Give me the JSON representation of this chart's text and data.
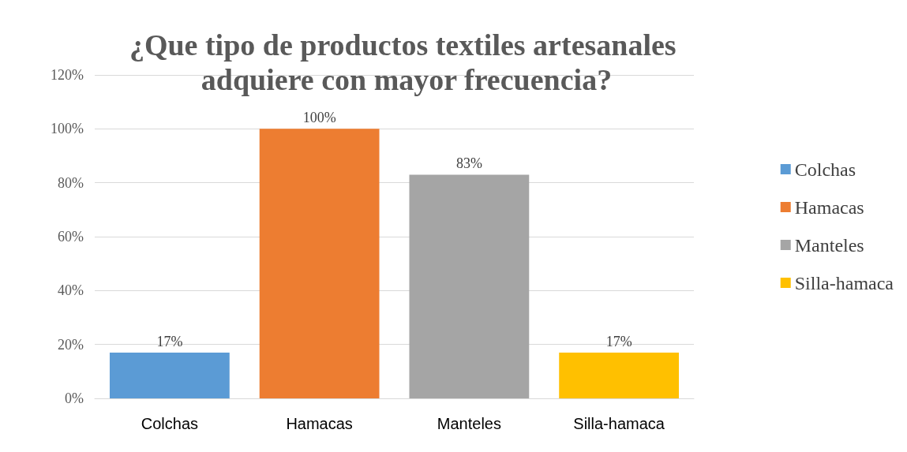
{
  "chart_data": {
    "type": "bar",
    "title": "¿Que tipo de productos textiles artesanales adquiere con mayor frecuencia?",
    "categories": [
      "Colchas",
      "Hamacas",
      "Manteles",
      "Silla-hamaca"
    ],
    "series": [
      {
        "name": "Colchas",
        "color": "#5b9bd5",
        "values": [
          17,
          null,
          null,
          null
        ],
        "value_labels": [
          "17%",
          null,
          null,
          null
        ]
      },
      {
        "name": "Hamacas",
        "color": "#ed7d31",
        "values": [
          null,
          100,
          null,
          null
        ],
        "value_labels": [
          null,
          "100%",
          null,
          null
        ]
      },
      {
        "name": "Manteles",
        "color": "#a5a5a5",
        "values": [
          null,
          null,
          83,
          null
        ],
        "value_labels": [
          null,
          null,
          "83%",
          null
        ]
      },
      {
        "name": "Silla-hamaca",
        "color": "#ffc000",
        "values": [
          null,
          null,
          null,
          17
        ],
        "value_labels": [
          null,
          null,
          null,
          "17%"
        ]
      }
    ],
    "stacked": true,
    "ylim": [
      0,
      120
    ],
    "yticks": [
      {
        "value": 0,
        "label": "0%"
      },
      {
        "value": 20,
        "label": "20%"
      },
      {
        "value": 40,
        "label": "40%"
      },
      {
        "value": 60,
        "label": "60%"
      },
      {
        "value": 80,
        "label": "80%"
      },
      {
        "value": 100,
        "label": "100%"
      },
      {
        "value": 120,
        "label": "120%"
      }
    ],
    "grid": "y",
    "legend": "right"
  }
}
